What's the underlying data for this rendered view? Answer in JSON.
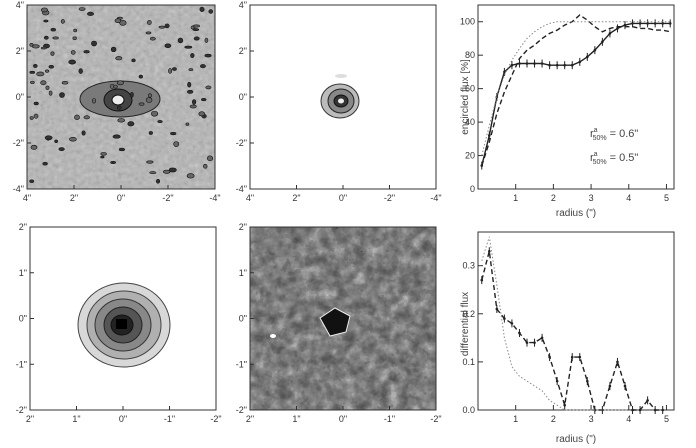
{
  "figure": {
    "panels": [
      {
        "id": "map-top-left",
        "x_ticks": [
          "4\"",
          "2\"",
          "0\"",
          "-2\"",
          "-4\""
        ],
        "y_ticks": [
          "4\"",
          "2\"",
          "0\"",
          "-2\"",
          "-4\""
        ]
      },
      {
        "id": "map-top-middle",
        "x_ticks": [
          "4\"",
          "2\"",
          "0\"",
          "-2\"",
          "-4\""
        ],
        "y_ticks": [
          "4\"",
          "2\"",
          "0\"",
          "-2\"",
          "-4\""
        ]
      },
      {
        "id": "map-bottom-left",
        "x_ticks": [
          "2\"",
          "1\"",
          "0\"",
          "-1\"",
          "-2\""
        ],
        "y_ticks": [
          "2\"",
          "1\"",
          "0\"",
          "-1\"",
          "-2\""
        ]
      },
      {
        "id": "map-bottom-middle",
        "x_ticks": [
          "2\"",
          "1\"",
          "0\"",
          "-1\"",
          "-2\""
        ],
        "y_ticks": [
          "2\"",
          "1\"",
          "0\"",
          "-1\"",
          "-2\""
        ]
      }
    ],
    "annotations": {
      "r50_a": "rᵃ₅₀‥ = 0.6\"",
      "r50_a_main": "r",
      "r50_a_sup": "a",
      "r50_a_sub": "50%",
      "r50_a_val": " = 0.6\"",
      "r50_b_main": "r",
      "r50_b_sup": "a",
      "r50_b_sub": "50%",
      "r50_b_val": " = 0.5\""
    }
  },
  "chart_data": [
    {
      "type": "line",
      "ylabel": "encircled flux [%]",
      "xlabel": "radius (\")",
      "xlim": [
        0,
        5.2
      ],
      "ylim": [
        0,
        110
      ],
      "x_ticks": [
        "1",
        "2",
        "3",
        "4",
        "5"
      ],
      "y_ticks": [
        "0",
        "20",
        "40",
        "60",
        "80",
        "100"
      ],
      "series": [
        {
          "style": "solid-errorbars",
          "x": [
            0.1,
            0.3,
            0.5,
            0.7,
            0.9,
            1.1,
            1.3,
            1.5,
            1.7,
            1.9,
            2.1,
            2.3,
            2.5,
            2.7,
            2.9,
            3.1,
            3.3,
            3.5,
            3.7,
            3.9,
            4.1,
            4.3,
            4.5,
            4.7,
            4.9,
            5.1
          ],
          "y": [
            14,
            32,
            55,
            70,
            74,
            75,
            75,
            75,
            75,
            74,
            74,
            74,
            74,
            76,
            79,
            83,
            88,
            93,
            96,
            98,
            99,
            99,
            99,
            99,
            99,
            99
          ]
        },
        {
          "style": "dashed",
          "x": [
            0.1,
            0.3,
            0.5,
            0.7,
            0.9,
            1.1,
            1.3,
            1.5,
            1.7,
            1.9,
            2.1,
            2.3,
            2.5,
            2.7,
            2.9,
            3.1,
            3.3,
            3.5,
            3.7,
            3.9,
            4.1,
            4.3,
            4.5,
            4.7,
            4.9,
            5.1
          ],
          "y": [
            14,
            28,
            45,
            58,
            68,
            78,
            83,
            86,
            90,
            93,
            95,
            98,
            100,
            104,
            101,
            97,
            94,
            96,
            97,
            97,
            97,
            96,
            96,
            95,
            95,
            94
          ]
        },
        {
          "style": "dotted",
          "x": [
            0.1,
            0.3,
            0.5,
            0.7,
            0.9,
            1.1,
            1.3,
            1.5,
            1.7,
            1.9,
            2.1,
            2.3,
            2.5,
            3.0,
            3.5,
            4.0,
            4.5,
            5.1
          ],
          "y": [
            20,
            38,
            55,
            68,
            77,
            84,
            90,
            94,
            97,
            99,
            100,
            100,
            100,
            100,
            100,
            100,
            100,
            100
          ]
        }
      ]
    },
    {
      "type": "line",
      "ylabel": "differential flux",
      "xlabel": "radius (\")",
      "xlim": [
        0,
        5.2
      ],
      "ylim": [
        0,
        0.37
      ],
      "x_ticks": [
        "1",
        "2",
        "3",
        "4",
        "5"
      ],
      "y_ticks": [
        "0.0",
        "0.1",
        "0.2",
        "0.3"
      ],
      "series": [
        {
          "style": "dashed-errorbars",
          "x": [
            0.1,
            0.3,
            0.5,
            0.7,
            0.9,
            1.1,
            1.3,
            1.5,
            1.7,
            1.9,
            2.1,
            2.3,
            2.5,
            2.7,
            2.9,
            3.1,
            3.3,
            3.5,
            3.7,
            3.9,
            4.1,
            4.3,
            4.5,
            4.7,
            4.9
          ],
          "y": [
            0.27,
            0.33,
            0.21,
            0.19,
            0.18,
            0.16,
            0.14,
            0.14,
            0.15,
            0.11,
            0.06,
            0.01,
            0.11,
            0.11,
            0.06,
            0.0,
            0.0,
            0.05,
            0.1,
            0.05,
            0.0,
            0.0,
            0.02,
            0.0,
            0.0
          ]
        },
        {
          "style": "dotted",
          "x": [
            0.1,
            0.3,
            0.5,
            0.7,
            0.9,
            1.1,
            1.3,
            1.5,
            1.7,
            1.9,
            2.1,
            2.3,
            2.5,
            2.8,
            3.2,
            3.6,
            4.0
          ],
          "y": [
            0.31,
            0.36,
            0.26,
            0.15,
            0.09,
            0.07,
            0.06,
            0.05,
            0.04,
            0.02,
            0.01,
            0.0,
            0.0,
            0.0,
            0.0,
            0.0,
            0.0
          ]
        }
      ]
    }
  ]
}
